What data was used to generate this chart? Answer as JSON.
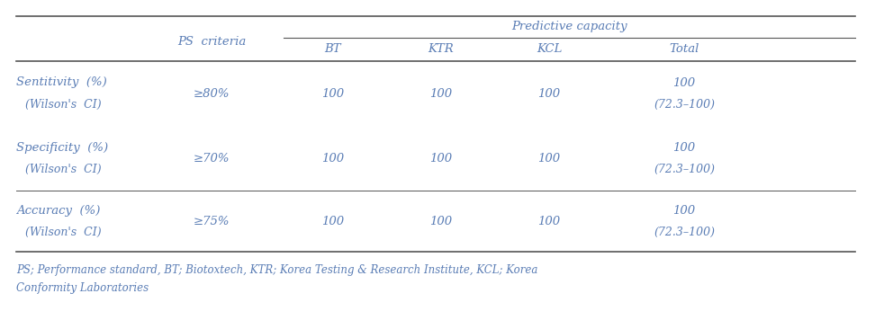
{
  "title": "Predictive capacity",
  "ps_criteria_label": "PS  criteria",
  "col_headers": [
    "BT",
    "KTR",
    "KCL",
    "Total"
  ],
  "row_labels": [
    [
      "Sentitivity  (%)",
      "(Wilson's  CI)"
    ],
    [
      "Specificity  (%)",
      "(Wilson's  CI)"
    ],
    [
      "Accuracy  (%)",
      "(Wilson's  CI)"
    ]
  ],
  "ps_criteria": [
    "≥80%",
    "≥70%",
    "≥75%"
  ],
  "bt_values": [
    "100",
    "100",
    "100"
  ],
  "ktr_values": [
    "100",
    "100",
    "100"
  ],
  "kcl_values": [
    "100",
    "100",
    "100"
  ],
  "total_line1": [
    "100",
    "100",
    "100"
  ],
  "total_line2": [
    "(72.3–100)",
    "(72.3–100)",
    "(72.3–100)"
  ],
  "footnote_line1": "PS; Performance standard, BT; Biotoxtech, KTR; Korea Testing & Research Institute, KCL; Korea",
  "footnote_line2": "Conformity Laboratories",
  "text_color": "#5a7db5",
  "bg_color": "#ffffff",
  "font_size": 9.5,
  "footnote_font_size": 8.5
}
